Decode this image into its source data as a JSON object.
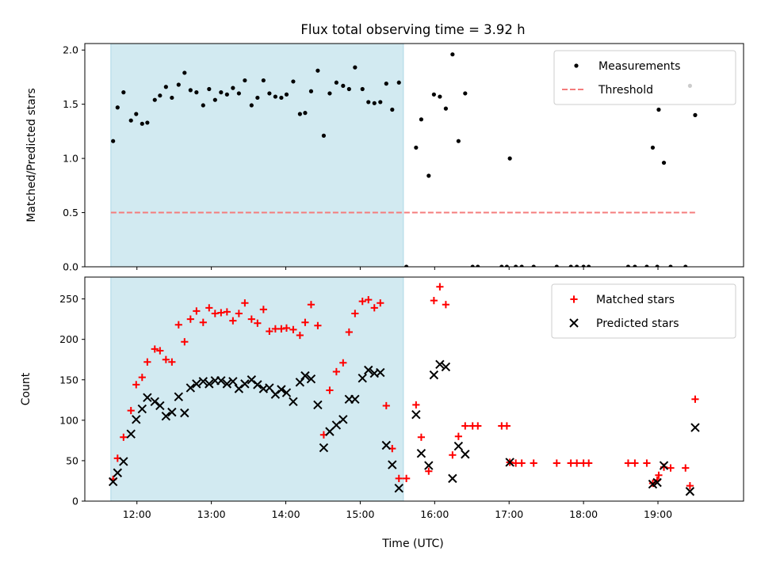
{
  "chart_data": {
    "type": "scatter",
    "title": "Flux total observing time = 3.92 h",
    "shared_x": {
      "label": "Time (UTC)",
      "unit": "hours UTC",
      "lim": [
        11.3,
        20.15
      ],
      "ticks": [
        12,
        13,
        14,
        15,
        16,
        17,
        18,
        19
      ],
      "tick_labels": [
        "12:00",
        "13:00",
        "14:00",
        "15:00",
        "16:00",
        "17:00",
        "18:00",
        "19:00"
      ]
    },
    "highlight_span": {
      "x0": 11.65,
      "x1": 15.58,
      "color": "#add8e6"
    },
    "panels": [
      {
        "ylabel": "Matched/Predicted stars",
        "ylim": [
          0,
          2.06
        ],
        "yticks": [
          0,
          0.5,
          1.0,
          1.5,
          2.0
        ],
        "ytick_labels": [
          "0.0",
          "0.5",
          "1.0",
          "1.5",
          "2.0"
        ],
        "legend": {
          "position": "top-right"
        },
        "series": [
          {
            "name": "Measurements",
            "marker": "dot",
            "color": "#000000",
            "points": [
              [
                11.68,
                1.16
              ],
              [
                11.74,
                1.47
              ],
              [
                11.82,
                1.61
              ],
              [
                11.92,
                1.35
              ],
              [
                11.99,
                1.41
              ],
              [
                12.07,
                1.32
              ],
              [
                12.14,
                1.33
              ],
              [
                12.24,
                1.54
              ],
              [
                12.31,
                1.58
              ],
              [
                12.39,
                1.66
              ],
              [
                12.47,
                1.56
              ],
              [
                12.56,
                1.68
              ],
              [
                12.64,
                1.79
              ],
              [
                12.72,
                1.63
              ],
              [
                12.8,
                1.61
              ],
              [
                12.89,
                1.49
              ],
              [
                12.97,
                1.64
              ],
              [
                13.05,
                1.54
              ],
              [
                13.13,
                1.61
              ],
              [
                13.21,
                1.59
              ],
              [
                13.29,
                1.65
              ],
              [
                13.37,
                1.6
              ],
              [
                13.45,
                1.72
              ],
              [
                13.54,
                1.49
              ],
              [
                13.62,
                1.56
              ],
              [
                13.7,
                1.72
              ],
              [
                13.78,
                1.6
              ],
              [
                13.86,
                1.57
              ],
              [
                13.94,
                1.56
              ],
              [
                14.01,
                1.59
              ],
              [
                14.1,
                1.71
              ],
              [
                14.19,
                1.41
              ],
              [
                14.26,
                1.42
              ],
              [
                14.34,
                1.62
              ],
              [
                14.43,
                1.81
              ],
              [
                14.51,
                1.21
              ],
              [
                14.59,
                1.6
              ],
              [
                14.68,
                1.7
              ],
              [
                14.77,
                1.67
              ],
              [
                14.85,
                1.64
              ],
              [
                14.93,
                1.84
              ],
              [
                15.03,
                1.64
              ],
              [
                15.11,
                1.52
              ],
              [
                15.19,
                1.51
              ],
              [
                15.27,
                1.52
              ],
              [
                15.35,
                1.69
              ],
              [
                15.43,
                1.45
              ],
              [
                15.52,
                1.7
              ],
              [
                15.62,
                0.0
              ],
              [
                15.75,
                1.1
              ],
              [
                15.82,
                1.36
              ],
              [
                15.92,
                0.84
              ],
              [
                15.99,
                1.59
              ],
              [
                16.07,
                1.57
              ],
              [
                16.15,
                1.46
              ],
              [
                16.24,
                1.96
              ],
              [
                16.32,
                1.16
              ],
              [
                16.41,
                1.6
              ],
              [
                16.51,
                0.0
              ],
              [
                16.58,
                0.0
              ],
              [
                16.9,
                0.0
              ],
              [
                16.97,
                0.0
              ],
              [
                17.01,
                1.0
              ],
              [
                17.09,
                0.0
              ],
              [
                17.17,
                0.0
              ],
              [
                17.33,
                0.0
              ],
              [
                17.64,
                0.0
              ],
              [
                17.83,
                0.0
              ],
              [
                17.91,
                0.0
              ],
              [
                18.0,
                0.0
              ],
              [
                18.07,
                0.0
              ],
              [
                18.6,
                0.0
              ],
              [
                18.69,
                0.0
              ],
              [
                18.85,
                0.0
              ],
              [
                18.93,
                1.1
              ],
              [
                18.99,
                0.0
              ],
              [
                19.01,
                1.45
              ],
              [
                19.08,
                0.96
              ],
              [
                19.17,
                0.0
              ],
              [
                19.37,
                0.0
              ],
              [
                19.43,
                1.67
              ],
              [
                19.5,
                1.4
              ]
            ]
          },
          {
            "name": "Threshold",
            "line": "dashed",
            "color": "#f47c7c",
            "y": 0.5,
            "x_range": [
              11.65,
              19.5
            ]
          }
        ]
      },
      {
        "ylabel": "Count",
        "ylim": [
          0,
          277
        ],
        "yticks": [
          0,
          50,
          100,
          150,
          200,
          250
        ],
        "ytick_labels": [
          "0",
          "50",
          "100",
          "150",
          "200",
          "250"
        ],
        "legend": {
          "position": "top-right"
        },
        "series": [
          {
            "name": "Matched stars",
            "marker": "plus",
            "color": "#ff0000",
            "points": [
              [
                11.68,
                27
              ],
              [
                11.74,
                53
              ],
              [
                11.82,
                79
              ],
              [
                11.92,
                112
              ],
              [
                11.99,
                144
              ],
              [
                12.07,
                153
              ],
              [
                12.14,
                172
              ],
              [
                12.24,
                188
              ],
              [
                12.31,
                186
              ],
              [
                12.39,
                175
              ],
              [
                12.47,
                172
              ],
              [
                12.56,
                218
              ],
              [
                12.64,
                197
              ],
              [
                12.72,
                225
              ],
              [
                12.8,
                235
              ],
              [
                12.89,
                221
              ],
              [
                12.97,
                239
              ],
              [
                13.05,
                232
              ],
              [
                13.13,
                233
              ],
              [
                13.21,
                234
              ],
              [
                13.29,
                223
              ],
              [
                13.37,
                232
              ],
              [
                13.45,
                245
              ],
              [
                13.54,
                225
              ],
              [
                13.62,
                220
              ],
              [
                13.7,
                237
              ],
              [
                13.78,
                210
              ],
              [
                13.86,
                213
              ],
              [
                13.94,
                213
              ],
              [
                14.01,
                214
              ],
              [
                14.1,
                212
              ],
              [
                14.19,
                205
              ],
              [
                14.26,
                221
              ],
              [
                14.34,
                243
              ],
              [
                14.43,
                217
              ],
              [
                14.51,
                82
              ],
              [
                14.59,
                137
              ],
              [
                14.68,
                160
              ],
              [
                14.77,
                171
              ],
              [
                14.85,
                209
              ],
              [
                14.93,
                232
              ],
              [
                15.03,
                247
              ],
              [
                15.11,
                249
              ],
              [
                15.19,
                239
              ],
              [
                15.27,
                245
              ],
              [
                15.35,
                118
              ],
              [
                15.43,
                65
              ],
              [
                15.52,
                28
              ],
              [
                15.62,
                28
              ],
              [
                15.75,
                119
              ],
              [
                15.82,
                79
              ],
              [
                15.92,
                37
              ],
              [
                15.99,
                248
              ],
              [
                16.07,
                265
              ],
              [
                16.15,
                243
              ],
              [
                16.24,
                57
              ],
              [
                16.32,
                80
              ],
              [
                16.41,
                93
              ],
              [
                16.51,
                93
              ],
              [
                16.58,
                93
              ],
              [
                16.9,
                93
              ],
              [
                16.97,
                93
              ],
              [
                17.01,
                48
              ],
              [
                17.09,
                47
              ],
              [
                17.17,
                47
              ],
              [
                17.33,
                47
              ],
              [
                17.64,
                47
              ],
              [
                17.83,
                47
              ],
              [
                17.91,
                47
              ],
              [
                18.0,
                47
              ],
              [
                18.07,
                47
              ],
              [
                18.6,
                47
              ],
              [
                18.69,
                47
              ],
              [
                18.85,
                47
              ],
              [
                18.93,
                22
              ],
              [
                18.99,
                26
              ],
              [
                19.01,
                32
              ],
              [
                19.08,
                42
              ],
              [
                19.17,
                41
              ],
              [
                19.37,
                41
              ],
              [
                19.43,
                19
              ],
              [
                19.5,
                126
              ]
            ]
          },
          {
            "name": "Predicted stars",
            "marker": "x",
            "color": "#000000",
            "points": [
              [
                11.68,
                24
              ],
              [
                11.74,
                35
              ],
              [
                11.82,
                49
              ],
              [
                11.92,
                83
              ],
              [
                11.99,
                101
              ],
              [
                12.07,
                114
              ],
              [
                12.14,
                128
              ],
              [
                12.24,
                123
              ],
              [
                12.31,
                118
              ],
              [
                12.39,
                105
              ],
              [
                12.47,
                110
              ],
              [
                12.56,
                129
              ],
              [
                12.64,
                109
              ],
              [
                12.72,
                140
              ],
              [
                12.8,
                145
              ],
              [
                12.89,
                148
              ],
              [
                12.97,
                145
              ],
              [
                13.05,
                149
              ],
              [
                13.13,
                149
              ],
              [
                13.21,
                145
              ],
              [
                13.29,
                148
              ],
              [
                13.37,
                139
              ],
              [
                13.45,
                145
              ],
              [
                13.54,
                150
              ],
              [
                13.62,
                144
              ],
              [
                13.7,
                139
              ],
              [
                13.78,
                140
              ],
              [
                13.86,
                132
              ],
              [
                13.94,
                138
              ],
              [
                14.01,
                134
              ],
              [
                14.1,
                123
              ],
              [
                14.19,
                147
              ],
              [
                14.26,
                155
              ],
              [
                14.34,
                151
              ],
              [
                14.43,
                119
              ],
              [
                14.51,
                66
              ],
              [
                14.59,
                86
              ],
              [
                14.68,
                94
              ],
              [
                14.77,
                101
              ],
              [
                14.85,
                126
              ],
              [
                14.93,
                126
              ],
              [
                15.03,
                152
              ],
              [
                15.11,
                162
              ],
              [
                15.19,
                158
              ],
              [
                15.27,
                159
              ],
              [
                15.35,
                69
              ],
              [
                15.43,
                45
              ],
              [
                15.52,
                16
              ],
              [
                15.75,
                107
              ],
              [
                15.82,
                59
              ],
              [
                15.92,
                44
              ],
              [
                15.99,
                156
              ],
              [
                16.07,
                169
              ],
              [
                16.15,
                166
              ],
              [
                16.24,
                28
              ],
              [
                16.32,
                68
              ],
              [
                16.41,
                58
              ],
              [
                17.01,
                48
              ],
              [
                18.93,
                21
              ],
              [
                18.99,
                23
              ],
              [
                19.08,
                44
              ],
              [
                19.43,
                12
              ],
              [
                19.5,
                91
              ]
            ]
          }
        ]
      }
    ]
  }
}
